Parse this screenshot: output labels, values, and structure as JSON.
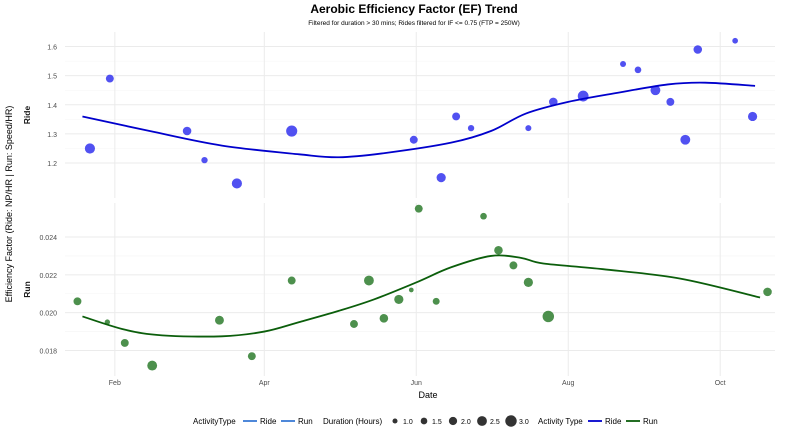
{
  "chart_data": {
    "type": "scatter",
    "title": "Aerobic Efficiency Factor (EF) Trend",
    "subtitle": "Filtered for duration > 30 mins; Rides filtered for IF <= 0.75 (FTP = 250W)",
    "xlabel": "Date",
    "ylabel": "Efficiency Factor (Ride: NP/HR | Run: Speed/HR)",
    "x_ticks": [
      "Feb",
      "Apr",
      "Jun",
      "Aug",
      "Oct"
    ],
    "x_tick_dates": [
      "2024-02-01",
      "2024-04-01",
      "2024-06-01",
      "2024-08-01",
      "2024-10-01"
    ],
    "xlim": [
      "2024-01-12",
      "2024-10-23"
    ],
    "grid": true,
    "legend_position": "bottom",
    "colors": {
      "ride_points": "#3333ee",
      "ride_trend": "#0000cc",
      "run_points": "#2e7d2e",
      "run_trend": "#0b5e0b",
      "grid": "#ebebeb",
      "legend_line": "#3a7bd5"
    },
    "panels": [
      {
        "name": "Ride",
        "ylim": [
          1.08,
          1.65
        ],
        "y_ticks": [
          1.2,
          1.3,
          1.4,
          1.5,
          1.6
        ],
        "y_tick_labels": [
          "1.2",
          "1.3",
          "1.4",
          "1.5",
          "1.6"
        ],
        "points": [
          {
            "date": "2024-01-22",
            "y": 1.25,
            "duration": 2.6
          },
          {
            "date": "2024-01-30",
            "y": 1.49,
            "duration": 1.9
          },
          {
            "date": "2024-03-01",
            "y": 1.31,
            "duration": 2.1
          },
          {
            "date": "2024-03-08",
            "y": 1.21,
            "duration": 1.4
          },
          {
            "date": "2024-03-21",
            "y": 1.13,
            "duration": 2.6
          },
          {
            "date": "2024-04-12",
            "y": 1.31,
            "duration": 2.9
          },
          {
            "date": "2024-05-31",
            "y": 1.28,
            "duration": 1.9
          },
          {
            "date": "2024-06-11",
            "y": 1.15,
            "duration": 2.3
          },
          {
            "date": "2024-06-17",
            "y": 1.36,
            "duration": 1.9
          },
          {
            "date": "2024-06-23",
            "y": 1.32,
            "duration": 1.4
          },
          {
            "date": "2024-07-16",
            "y": 1.32,
            "duration": 1.3
          },
          {
            "date": "2024-07-26",
            "y": 1.41,
            "duration": 2.1
          },
          {
            "date": "2024-08-07",
            "y": 1.43,
            "duration": 2.8
          },
          {
            "date": "2024-08-23",
            "y": 1.54,
            "duration": 1.3
          },
          {
            "date": "2024-08-29",
            "y": 1.52,
            "duration": 1.5
          },
          {
            "date": "2024-09-05",
            "y": 1.45,
            "duration": 2.5
          },
          {
            "date": "2024-09-11",
            "y": 1.41,
            "duration": 1.9
          },
          {
            "date": "2024-09-17",
            "y": 1.28,
            "duration": 2.5
          },
          {
            "date": "2024-09-22",
            "y": 1.59,
            "duration": 2.1
          },
          {
            "date": "2024-10-07",
            "y": 1.62,
            "duration": 1.2
          },
          {
            "date": "2024-10-14",
            "y": 1.36,
            "duration": 2.3
          }
        ],
        "trend": [
          {
            "date": "2024-01-19",
            "y": 1.36
          },
          {
            "date": "2024-02-15",
            "y": 1.31
          },
          {
            "date": "2024-03-15",
            "y": 1.26
          },
          {
            "date": "2024-04-15",
            "y": 1.23
          },
          {
            "date": "2024-05-01",
            "y": 1.22
          },
          {
            "date": "2024-05-20",
            "y": 1.235
          },
          {
            "date": "2024-06-15",
            "y": 1.27
          },
          {
            "date": "2024-07-01",
            "y": 1.31
          },
          {
            "date": "2024-07-15",
            "y": 1.37
          },
          {
            "date": "2024-08-01",
            "y": 1.41
          },
          {
            "date": "2024-08-20",
            "y": 1.44
          },
          {
            "date": "2024-09-10",
            "y": 1.47
          },
          {
            "date": "2024-09-25",
            "y": 1.476
          },
          {
            "date": "2024-10-15",
            "y": 1.465
          }
        ]
      },
      {
        "name": "Run",
        "ylim": [
          0.01665,
          0.0258
        ],
        "y_ticks": [
          0.018,
          0.02,
          0.022,
          0.024
        ],
        "y_tick_labels": [
          "0.018",
          "0.020",
          "0.022",
          "0.024"
        ],
        "points": [
          {
            "date": "2024-01-17",
            "y": 0.0206,
            "duration": 1.9
          },
          {
            "date": "2024-01-29",
            "y": 0.0195,
            "duration": 1.1
          },
          {
            "date": "2024-02-05",
            "y": 0.0184,
            "duration": 1.9
          },
          {
            "date": "2024-02-16",
            "y": 0.0172,
            "duration": 2.5
          },
          {
            "date": "2024-03-14",
            "y": 0.0196,
            "duration": 2.2
          },
          {
            "date": "2024-03-27",
            "y": 0.0177,
            "duration": 1.9
          },
          {
            "date": "2024-04-12",
            "y": 0.0217,
            "duration": 1.9
          },
          {
            "date": "2024-05-07",
            "y": 0.0194,
            "duration": 1.9
          },
          {
            "date": "2024-05-13",
            "y": 0.0217,
            "duration": 2.5
          },
          {
            "date": "2024-05-19",
            "y": 0.0197,
            "duration": 2.1
          },
          {
            "date": "2024-05-25",
            "y": 0.0207,
            "duration": 2.3
          },
          {
            "date": "2024-05-30",
            "y": 0.0212,
            "duration": 0.9
          },
          {
            "date": "2024-06-02",
            "y": 0.0255,
            "duration": 1.9
          },
          {
            "date": "2024-06-09",
            "y": 0.0206,
            "duration": 1.6
          },
          {
            "date": "2024-06-28",
            "y": 0.0251,
            "duration": 1.5
          },
          {
            "date": "2024-07-04",
            "y": 0.0233,
            "duration": 2.1
          },
          {
            "date": "2024-07-10",
            "y": 0.0225,
            "duration": 1.9
          },
          {
            "date": "2024-07-16",
            "y": 0.0216,
            "duration": 2.3
          },
          {
            "date": "2024-07-24",
            "y": 0.0198,
            "duration": 3.0
          },
          {
            "date": "2024-10-20",
            "y": 0.0211,
            "duration": 2.1
          }
        ],
        "trend": [
          {
            "date": "2024-01-19",
            "y": 0.0198
          },
          {
            "date": "2024-02-05",
            "y": 0.0191
          },
          {
            "date": "2024-02-20",
            "y": 0.0188
          },
          {
            "date": "2024-03-15",
            "y": 0.01875
          },
          {
            "date": "2024-04-01",
            "y": 0.019
          },
          {
            "date": "2024-04-15",
            "y": 0.0195
          },
          {
            "date": "2024-05-01",
            "y": 0.0201
          },
          {
            "date": "2024-05-15",
            "y": 0.0207
          },
          {
            "date": "2024-06-01",
            "y": 0.0216
          },
          {
            "date": "2024-06-15",
            "y": 0.0224
          },
          {
            "date": "2024-07-01",
            "y": 0.023
          },
          {
            "date": "2024-07-13",
            "y": 0.0229
          },
          {
            "date": "2024-07-22",
            "y": 0.0226
          },
          {
            "date": "2024-08-15",
            "y": 0.0223
          },
          {
            "date": "2024-09-15",
            "y": 0.0218
          },
          {
            "date": "2024-10-17",
            "y": 0.0208
          }
        ]
      }
    ],
    "legend": {
      "groups": [
        {
          "title": "ActivityType",
          "kind": "line",
          "items": [
            "Ride",
            "Run"
          ]
        },
        {
          "title": "Duration (Hours)",
          "kind": "size",
          "items": [
            "1.0",
            "1.5",
            "2.0",
            "2.5",
            "3.0"
          ],
          "values": [
            1.0,
            1.5,
            2.0,
            2.5,
            3.0
          ]
        },
        {
          "title": "Activity Type",
          "kind": "line-colored",
          "items": [
            "Ride",
            "Run"
          ]
        }
      ]
    }
  }
}
